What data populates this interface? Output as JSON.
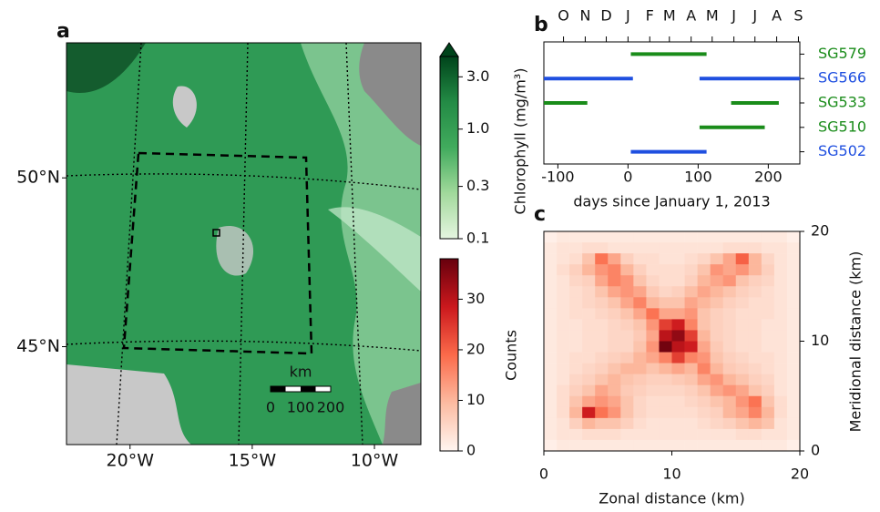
{
  "chart_data": [
    {
      "type": "map",
      "label": "a",
      "xlim": [
        -22.6,
        -8.1
      ],
      "ylim": [
        42.1,
        54.0
      ],
      "xticks": [
        {
          "value": -20,
          "label": "20°W"
        },
        {
          "value": -15,
          "label": "15°W"
        },
        {
          "value": -10,
          "label": "10°W"
        }
      ],
      "yticks": [
        {
          "value": 50,
          "label": "50°N"
        },
        {
          "value": 45,
          "label": "45°N"
        }
      ],
      "scale_bar": {
        "title": "km",
        "xlim": [
          0,
          200
        ],
        "ticks": [
          0,
          100,
          200
        ]
      },
      "colorbar": {
        "title": "Chlorophyll (mg/m³)",
        "scale": "log",
        "ylim": [
          0.1,
          4.6
        ],
        "yticks": [
          0.1,
          0.3,
          {
            "value": 1,
            "label": "1.0"
          },
          {
            "value": 3,
            "label": "3.0"
          }
        ],
        "colors": [
          "#e5f5e0",
          "#a1d99b",
          "#41ab5d",
          "#238b45",
          "#00441b"
        ]
      }
    },
    {
      "type": "timeline",
      "label": "b",
      "xlabel": "days since January 1, 2013",
      "xlim": [
        -120,
        245
      ],
      "xticks": [
        -100,
        0,
        100,
        200
      ],
      "top_ticks": [
        {
          "value": -92,
          "label": "O"
        },
        {
          "value": -61,
          "label": "N"
        },
        {
          "value": -31,
          "label": "D"
        },
        {
          "value": 0,
          "label": "J"
        },
        {
          "value": 31,
          "label": "F"
        },
        {
          "value": 59,
          "label": "M"
        },
        {
          "value": 90,
          "label": "A"
        },
        {
          "value": 120,
          "label": "M"
        },
        {
          "value": 151,
          "label": "J"
        },
        {
          "value": 181,
          "label": "J"
        },
        {
          "value": 212,
          "label": "A"
        },
        {
          "value": 243,
          "label": "S"
        }
      ],
      "series": [
        {
          "name": "SG579",
          "color": "#1a8c1a",
          "segments": [
            [
              4,
              112
            ]
          ]
        },
        {
          "name": "SG566",
          "color": "#1f4fe0",
          "segments": [
            [
              -120,
              7
            ],
            [
              102,
              245
            ]
          ]
        },
        {
          "name": "SG533",
          "color": "#1a8c1a",
          "segments": [
            [
              -120,
              -58
            ],
            [
              147,
              215
            ]
          ]
        },
        {
          "name": "SG510",
          "color": "#1a8c1a",
          "segments": [
            [
              102,
              195
            ]
          ]
        },
        {
          "name": "SG502",
          "color": "#1f4fe0",
          "segments": [
            [
              4,
              112
            ]
          ]
        }
      ]
    },
    {
      "type": "heatmap",
      "label": "c",
      "xlabel": "Zonal distance (km)",
      "ylabel": "Meridional distance (km)",
      "xlim": [
        0,
        20
      ],
      "ylim": [
        0,
        20
      ],
      "xticks": [
        0,
        10,
        20
      ],
      "yticks": [
        0,
        10,
        20
      ],
      "values": [
        [
          1,
          2,
          2,
          2,
          2,
          2,
          2,
          2,
          2,
          2,
          2,
          2,
          2,
          2,
          2,
          2,
          2,
          2,
          2,
          1
        ],
        [
          2,
          3,
          3,
          4,
          4,
          3,
          3,
          3,
          3,
          3,
          3,
          3,
          3,
          3,
          4,
          4,
          4,
          3,
          3,
          2
        ],
        [
          2,
          3,
          4,
          8,
          18,
          12,
          6,
          4,
          4,
          3,
          3,
          4,
          5,
          8,
          12,
          20,
          10,
          5,
          3,
          2
        ],
        [
          2,
          4,
          6,
          10,
          14,
          16,
          10,
          6,
          4,
          4,
          4,
          5,
          8,
          14,
          12,
          14,
          10,
          6,
          3,
          2
        ],
        [
          2,
          3,
          5,
          6,
          12,
          16,
          14,
          8,
          5,
          4,
          4,
          6,
          10,
          12,
          14,
          8,
          6,
          5,
          3,
          2
        ],
        [
          2,
          3,
          4,
          5,
          8,
          12,
          14,
          12,
          7,
          5,
          6,
          9,
          12,
          10,
          8,
          6,
          5,
          4,
          3,
          2
        ],
        [
          2,
          3,
          4,
          5,
          6,
          8,
          12,
          16,
          10,
          8,
          8,
          12,
          10,
          8,
          6,
          5,
          4,
          4,
          3,
          2
        ],
        [
          2,
          3,
          4,
          4,
          5,
          6,
          8,
          12,
          18,
          12,
          12,
          14,
          8,
          6,
          5,
          4,
          4,
          4,
          3,
          2
        ],
        [
          2,
          3,
          3,
          4,
          4,
          5,
          6,
          8,
          14,
          24,
          28,
          16,
          8,
          6,
          5,
          4,
          4,
          3,
          3,
          2
        ],
        [
          2,
          3,
          3,
          4,
          4,
          5,
          5,
          7,
          12,
          30,
          34,
          24,
          10,
          6,
          5,
          4,
          4,
          3,
          3,
          2
        ],
        [
          2,
          3,
          3,
          4,
          4,
          5,
          5,
          8,
          14,
          37,
          30,
          28,
          12,
          7,
          5,
          4,
          4,
          3,
          3,
          2
        ],
        [
          2,
          3,
          4,
          4,
          5,
          6,
          7,
          10,
          12,
          16,
          24,
          16,
          14,
          8,
          6,
          5,
          4,
          4,
          3,
          2
        ],
        [
          2,
          3,
          4,
          5,
          6,
          8,
          10,
          10,
          8,
          10,
          12,
          10,
          16,
          10,
          7,
          6,
          5,
          4,
          3,
          2
        ],
        [
          2,
          3,
          5,
          6,
          8,
          10,
          8,
          7,
          6,
          6,
          7,
          8,
          12,
          14,
          10,
          8,
          6,
          5,
          3,
          2
        ],
        [
          2,
          4,
          6,
          8,
          12,
          10,
          7,
          6,
          5,
          5,
          5,
          6,
          8,
          12,
          14,
          12,
          8,
          6,
          3,
          2
        ],
        [
          2,
          4,
          8,
          12,
          14,
          12,
          8,
          5,
          4,
          4,
          4,
          5,
          6,
          8,
          10,
          14,
          18,
          8,
          4,
          2
        ],
        [
          2,
          4,
          10,
          28,
          18,
          14,
          8,
          5,
          4,
          4,
          4,
          4,
          5,
          6,
          10,
          12,
          16,
          10,
          4,
          2
        ],
        [
          2,
          3,
          6,
          10,
          8,
          8,
          6,
          4,
          3,
          3,
          3,
          3,
          4,
          5,
          6,
          8,
          10,
          8,
          3,
          2
        ],
        [
          2,
          3,
          3,
          4,
          4,
          4,
          3,
          3,
          3,
          3,
          3,
          3,
          3,
          3,
          3,
          4,
          4,
          3,
          3,
          2
        ],
        [
          1,
          2,
          2,
          2,
          2,
          2,
          2,
          2,
          2,
          2,
          2,
          2,
          2,
          2,
          2,
          2,
          2,
          2,
          2,
          1
        ]
      ],
      "colorbar": {
        "title": "Counts",
        "ylim": [
          0,
          38
        ],
        "yticks": [
          0,
          10,
          20,
          30
        ],
        "colors": [
          "#fff5f0",
          "#fcbba1",
          "#fb6a4a",
          "#cb181d",
          "#67000d"
        ]
      }
    }
  ]
}
